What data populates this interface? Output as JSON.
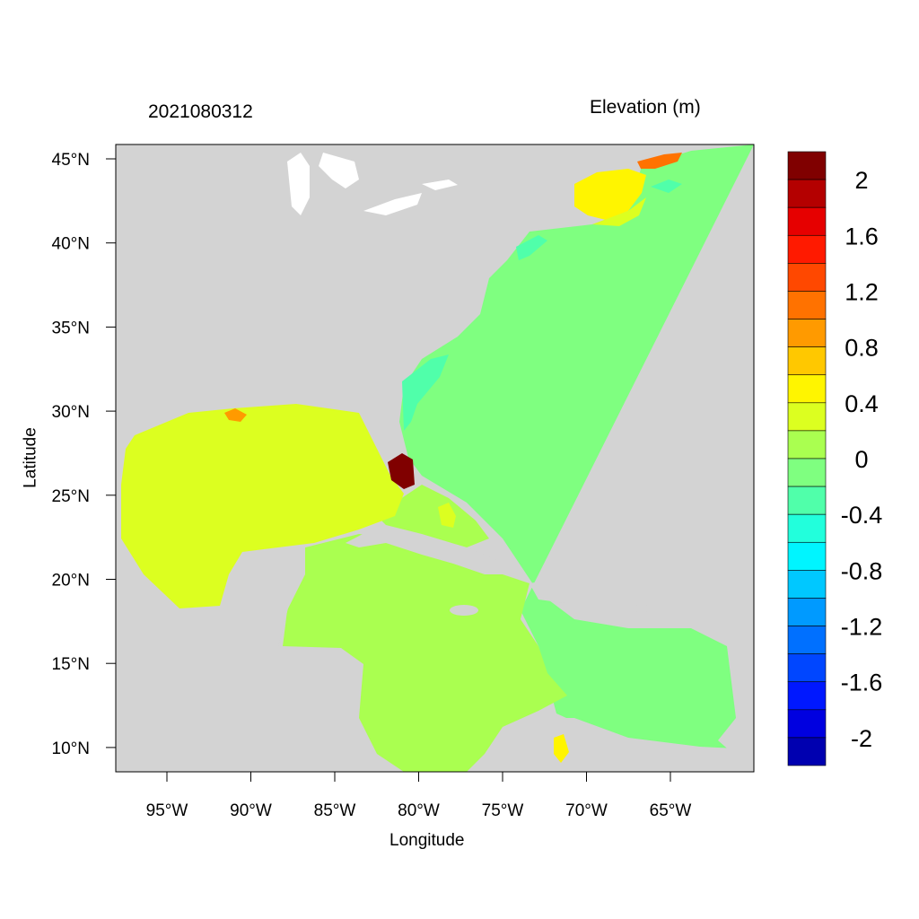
{
  "title_left": "2021080312",
  "title_right": "Elevation (m)",
  "xlabel": "Longitude",
  "ylabel": "Latitude",
  "lon_ticks": [
    "95°W",
    "90°W",
    "85°W",
    "80°W",
    "75°W",
    "70°W",
    "65°W"
  ],
  "lat_ticks": [
    "45°N",
    "40°N",
    "35°N",
    "30°N",
    "25°N",
    "20°N",
    "15°N",
    "10°N"
  ],
  "map_extent": {
    "lon": [
      -98,
      -60
    ],
    "lat": [
      8.6,
      45.8
    ]
  },
  "colorbar": {
    "colors_top_to_bottom": [
      "#800000",
      "#b40000",
      "#e60000",
      "#ff1a00",
      "#ff4800",
      "#ff7200",
      "#ff9a00",
      "#ffc800",
      "#fff500",
      "#dcff20",
      "#aaff50",
      "#7fff80",
      "#50ffaa",
      "#22ffdc",
      "#00f5ff",
      "#00c8ff",
      "#009aff",
      "#0070ff",
      "#0046ff",
      "#0018ff",
      "#0000e0",
      "#0000b0"
    ],
    "labels": [
      "2",
      "1.6",
      "1.2",
      "0.8",
      "0.4",
      "0",
      "-0.4",
      "-0.8",
      "-1.2",
      "-1.6",
      "-2"
    ]
  },
  "colors": {
    "land": "#d3d3d3",
    "lakes": "#ffffff"
  }
}
